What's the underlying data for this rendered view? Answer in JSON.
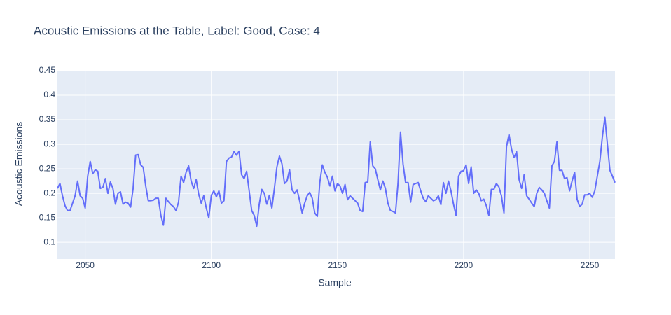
{
  "chart_data": {
    "type": "line",
    "title": "Acoustic Emissions at the Table, Label: Good, Case: 4",
    "x_label": "Sample",
    "y_label": "Acoustic Emissions",
    "color": "#636efa",
    "grid": true,
    "xlim": [
      2039,
      2260
    ],
    "ylim": [
      0.066,
      0.45
    ],
    "xticks": [
      2050,
      2100,
      2150,
      2200,
      2250
    ],
    "yticks": [
      0.1,
      0.15,
      0.2,
      0.25,
      0.3,
      0.35,
      0.4,
      0.45
    ],
    "x": [
      2039,
      2040,
      2041,
      2042,
      2043,
      2044,
      2045,
      2046,
      2047,
      2048,
      2049,
      2050,
      2051,
      2052,
      2053,
      2054,
      2055,
      2056,
      2057,
      2058,
      2059,
      2060,
      2061,
      2062,
      2063,
      2064,
      2065,
      2066,
      2067,
      2068,
      2069,
      2070,
      2071,
      2072,
      2073,
      2074,
      2075,
      2076,
      2077,
      2078,
      2079,
      2080,
      2081,
      2082,
      2083,
      2084,
      2085,
      2086,
      2087,
      2088,
      2089,
      2090,
      2091,
      2092,
      2093,
      2094,
      2095,
      2096,
      2097,
      2098,
      2099,
      2100,
      2101,
      2102,
      2103,
      2104,
      2105,
      2106,
      2107,
      2108,
      2109,
      2110,
      2111,
      2112,
      2113,
      2114,
      2115,
      2116,
      2117,
      2118,
      2119,
      2120,
      2121,
      2122,
      2123,
      2124,
      2125,
      2126,
      2127,
      2128,
      2129,
      2130,
      2131,
      2132,
      2133,
      2134,
      2135,
      2136,
      2137,
      2138,
      2139,
      2140,
      2141,
      2142,
      2143,
      2144,
      2145,
      2146,
      2147,
      2148,
      2149,
      2150,
      2151,
      2152,
      2153,
      2154,
      2155,
      2156,
      2157,
      2158,
      2159,
      2160,
      2161,
      2162,
      2163,
      2164,
      2165,
      2166,
      2167,
      2168,
      2169,
      2170,
      2171,
      2172,
      2173,
      2174,
      2175,
      2176,
      2177,
      2178,
      2179,
      2180,
      2181,
      2182,
      2183,
      2184,
      2185,
      2186,
      2187,
      2188,
      2189,
      2190,
      2191,
      2192,
      2193,
      2194,
      2195,
      2196,
      2197,
      2198,
      2199,
      2200,
      2201,
      2202,
      2203,
      2204,
      2205,
      2206,
      2207,
      2208,
      2209,
      2210,
      2211,
      2212,
      2213,
      2214,
      2215,
      2216,
      2217,
      2218,
      2219,
      2220,
      2221,
      2222,
      2223,
      2224,
      2225,
      2226,
      2227,
      2228,
      2229,
      2230,
      2231,
      2232,
      2233,
      2234,
      2235,
      2236,
      2237,
      2238,
      2239,
      2240,
      2241,
      2242,
      2243,
      2244,
      2245,
      2246,
      2247,
      2248,
      2249,
      2250,
      2251,
      2252,
      2253,
      2254,
      2255,
      2256,
      2257,
      2258,
      2259,
      2260
    ],
    "values": [
      0.21,
      0.22,
      0.195,
      0.175,
      0.165,
      0.165,
      0.18,
      0.195,
      0.225,
      0.195,
      0.19,
      0.17,
      0.235,
      0.265,
      0.24,
      0.248,
      0.245,
      0.21,
      0.212,
      0.23,
      0.2,
      0.223,
      0.21,
      0.178,
      0.2,
      0.203,
      0.178,
      0.182,
      0.18,
      0.172,
      0.21,
      0.278,
      0.279,
      0.258,
      0.253,
      0.215,
      0.185,
      0.185,
      0.186,
      0.19,
      0.19,
      0.155,
      0.135,
      0.19,
      0.183,
      0.177,
      0.173,
      0.165,
      0.182,
      0.235,
      0.222,
      0.243,
      0.256,
      0.225,
      0.21,
      0.228,
      0.198,
      0.18,
      0.195,
      0.17,
      0.15,
      0.196,
      0.205,
      0.193,
      0.205,
      0.18,
      0.185,
      0.265,
      0.272,
      0.274,
      0.285,
      0.278,
      0.286,
      0.238,
      0.23,
      0.245,
      0.205,
      0.165,
      0.155,
      0.133,
      0.178,
      0.208,
      0.2,
      0.178,
      0.196,
      0.17,
      0.21,
      0.254,
      0.276,
      0.26,
      0.22,
      0.225,
      0.248,
      0.207,
      0.2,
      0.207,
      0.185,
      0.16,
      0.18,
      0.195,
      0.202,
      0.19,
      0.16,
      0.153,
      0.222,
      0.258,
      0.243,
      0.233,
      0.215,
      0.235,
      0.205,
      0.22,
      0.215,
      0.2,
      0.218,
      0.187,
      0.195,
      0.19,
      0.185,
      0.18,
      0.165,
      0.163,
      0.222,
      0.223,
      0.305,
      0.256,
      0.25,
      0.228,
      0.207,
      0.225,
      0.21,
      0.18,
      0.165,
      0.163,
      0.16,
      0.22,
      0.325,
      0.26,
      0.222,
      0.222,
      0.182,
      0.218,
      0.22,
      0.222,
      0.205,
      0.19,
      0.183,
      0.195,
      0.19,
      0.185,
      0.187,
      0.195,
      0.177,
      0.222,
      0.2,
      0.225,
      0.205,
      0.178,
      0.155,
      0.235,
      0.245,
      0.246,
      0.258,
      0.22,
      0.254,
      0.2,
      0.207,
      0.2,
      0.185,
      0.188,
      0.175,
      0.155,
      0.208,
      0.208,
      0.22,
      0.213,
      0.195,
      0.16,
      0.295,
      0.32,
      0.29,
      0.273,
      0.285,
      0.228,
      0.21,
      0.238,
      0.195,
      0.188,
      0.18,
      0.173,
      0.2,
      0.212,
      0.207,
      0.2,
      0.185,
      0.17,
      0.256,
      0.265,
      0.305,
      0.247,
      0.247,
      0.23,
      0.232,
      0.205,
      0.225,
      0.243,
      0.188,
      0.173,
      0.178,
      0.197,
      0.197,
      0.2,
      0.192,
      0.205,
      0.235,
      0.265,
      0.315,
      0.355,
      0.3,
      0.247,
      0.235,
      0.222
    ]
  }
}
